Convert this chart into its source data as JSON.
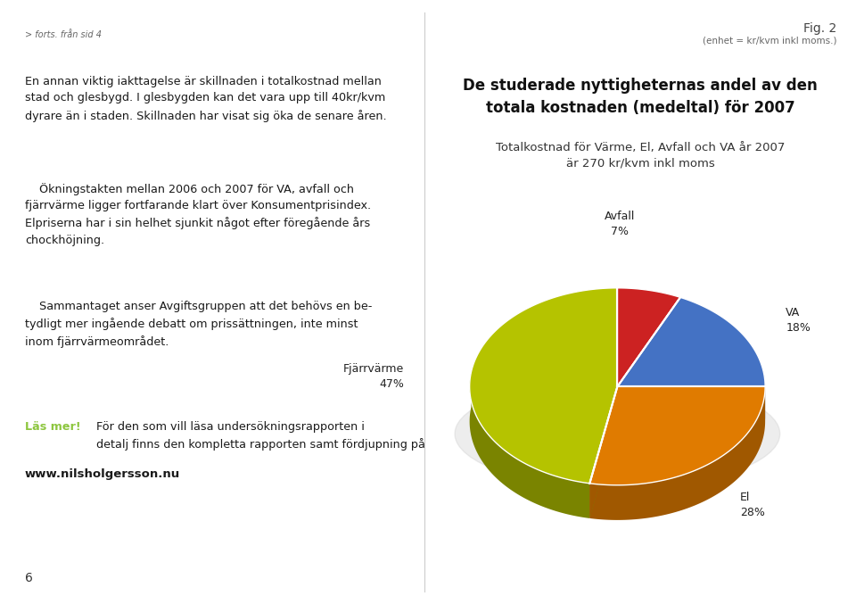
{
  "title_line1": "De studerade nyttigheternas andel av den",
  "title_line2": "totala kostnaden (medeltal) för 2007",
  "subtitle1": "Totalkostnad för Värme, El, Avfall och VA år 2007",
  "subtitle2": "är 270 kr/kvm inkl moms",
  "fig_label": "Fig. 2",
  "fig_sublabel": "(enhet = kr/kvm inkl moms.)",
  "header_text": "> forts. från sid 4",
  "background_color": "#ffffff",
  "slice_order": [
    {
      "label": "Avfall",
      "pct": "7%",
      "value": 7,
      "color": "#cc2222",
      "dark_color": "#8a1717"
    },
    {
      "label": "VA",
      "pct": "18%",
      "value": 18,
      "color": "#4472c4",
      "dark_color": "#2d4e8a"
    },
    {
      "label": "El",
      "pct": "28%",
      "value": 28,
      "color": "#e07b00",
      "dark_color": "#a05800"
    },
    {
      "label": "Fjärrvärme",
      "pct": "47%",
      "value": 47,
      "color": "#b5c300",
      "dark_color": "#7a8400"
    }
  ]
}
